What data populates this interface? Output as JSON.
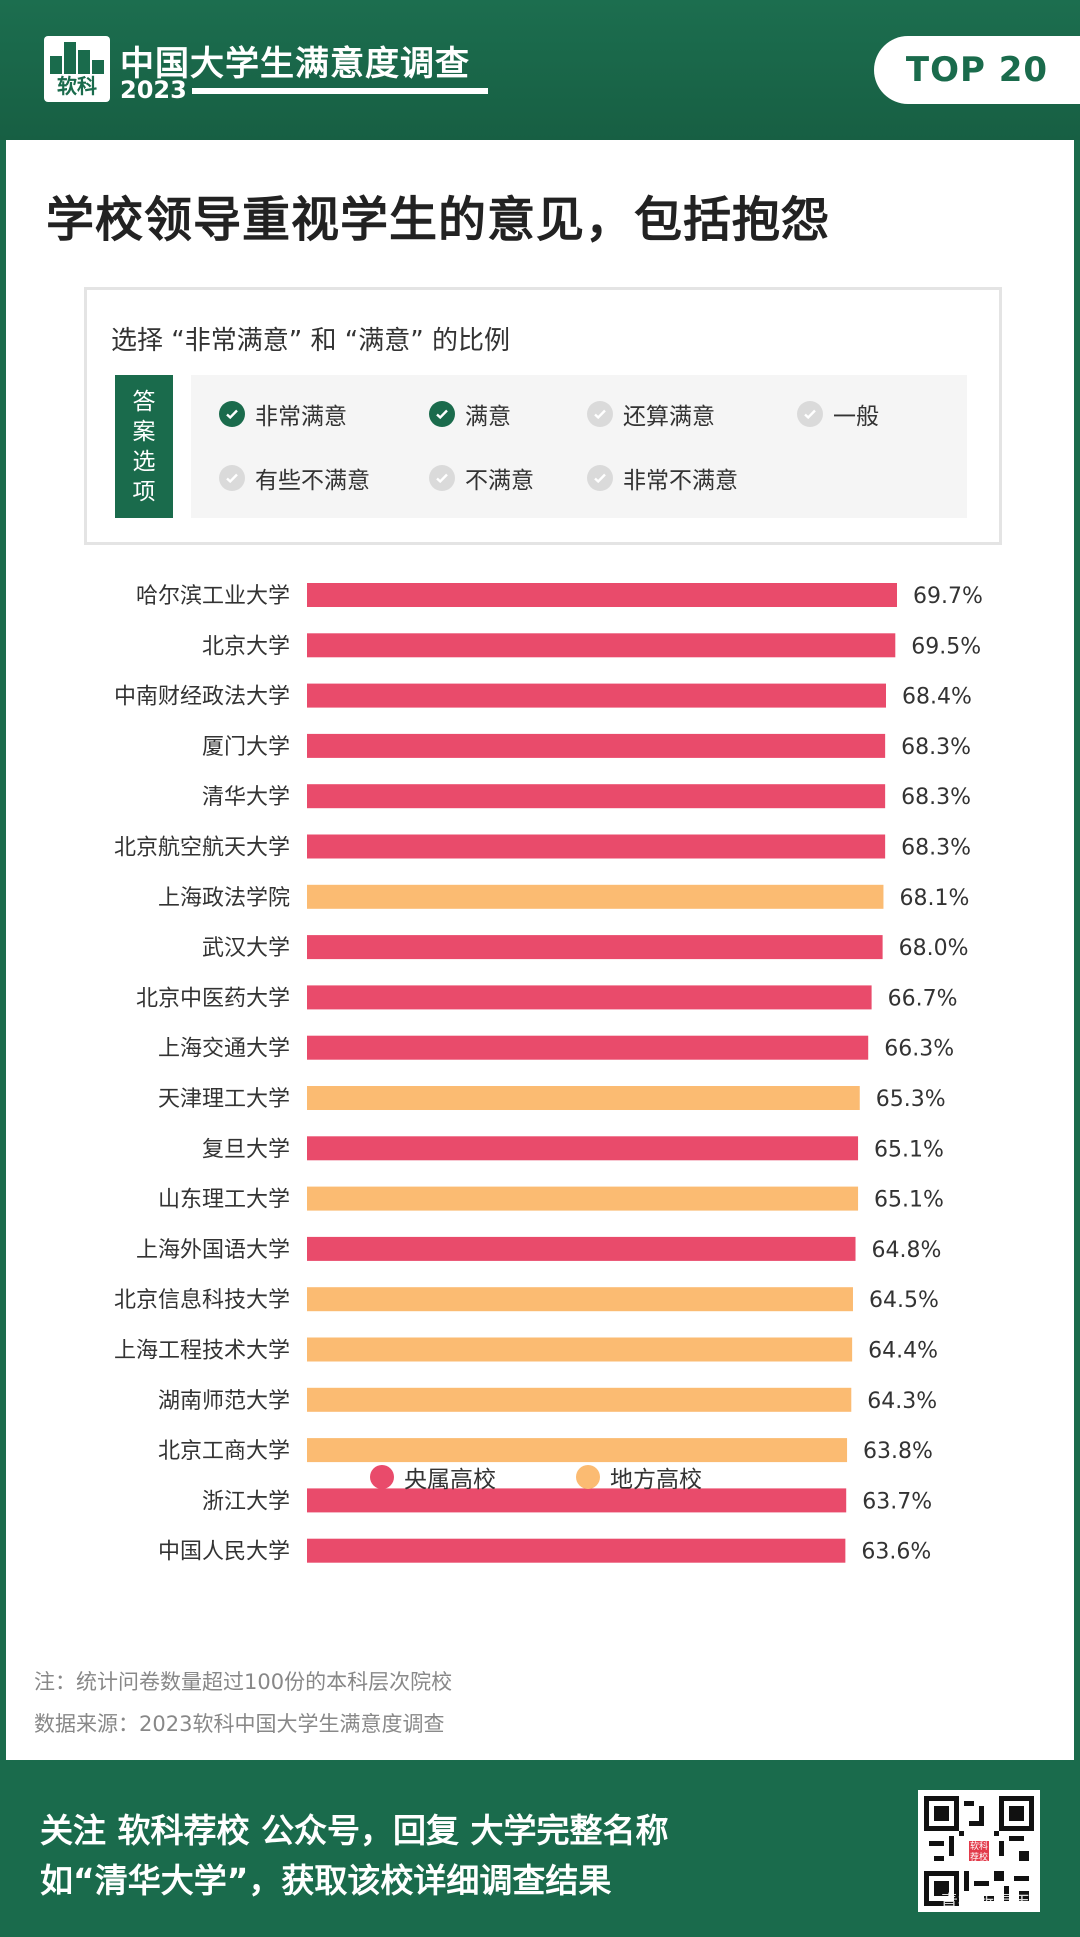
{
  "header": {
    "logo_text": "软科",
    "title": "中国大学生满意度调查",
    "year": "2023",
    "badge": "TOP 20"
  },
  "main_title": "学校领导重视学生的意见，包括抱怨",
  "criteria": {
    "title": "选择 “非常满意” 和 “满意” 的比例",
    "tag": "答案选项",
    "options": [
      {
        "label": "非常满意",
        "selected": true
      },
      {
        "label": "满意",
        "selected": true
      },
      {
        "label": "还算满意",
        "selected": false
      },
      {
        "label": "一般",
        "selected": false
      },
      {
        "label": "有些不满意",
        "selected": false
      },
      {
        "label": "不满意",
        "selected": false
      },
      {
        "label": "非常不满意",
        "selected": false
      }
    ]
  },
  "chart_data": {
    "type": "bar",
    "orientation": "horizontal",
    "unit": "%",
    "categories": [
      "哈尔滨工业大学",
      "北京大学",
      "中南财经政法大学",
      "厦门大学",
      "清华大学",
      "北京航空航天大学",
      "上海政法学院",
      "武汉大学",
      "北京中医药大学",
      "上海交通大学",
      "天津理工大学",
      "复旦大学",
      "山东理工大学",
      "上海外国语大学",
      "北京信息科技大学",
      "上海工程技术大学",
      "湖南师范大学",
      "北京工商大学",
      "浙江大学",
      "中国人民大学"
    ],
    "values": [
      69.7,
      69.5,
      68.4,
      68.3,
      68.3,
      68.3,
      68.1,
      68.0,
      66.7,
      66.3,
      65.3,
      65.1,
      65.1,
      64.8,
      64.5,
      64.4,
      64.3,
      63.8,
      63.7,
      63.6
    ],
    "value_labels": [
      "69.7%",
      "69.5%",
      "68.4%",
      "68.3%",
      "68.3%",
      "68.3%",
      "68.1%",
      "68.0%",
      "66.7%",
      "66.3%",
      "65.3%",
      "65.1%",
      "65.1%",
      "64.8%",
      "64.5%",
      "64.4%",
      "64.3%",
      "63.8%",
      "63.7%",
      "63.6%"
    ],
    "groups": [
      "央属高校",
      "央属高校",
      "央属高校",
      "央属高校",
      "央属高校",
      "央属高校",
      "地方高校",
      "央属高校",
      "央属高校",
      "央属高校",
      "地方高校",
      "央属高校",
      "地方高校",
      "央属高校",
      "地方高校",
      "地方高校",
      "地方高校",
      "地方高校",
      "央属高校",
      "央属高校"
    ],
    "series": [
      {
        "name": "央属高校",
        "color": "#e94b6b"
      },
      {
        "name": "地方高校",
        "color": "#fbbb72"
      }
    ],
    "legend_position": "bottom",
    "grid": false
  },
  "notes": {
    "note": "注：统计问卷数量超过100份的本科层次院校",
    "source": "数据来源：2023软科中国大学生满意度调查"
  },
  "footer": {
    "line1": "关注 软科荐校 公众号，回复 大学完整名称",
    "line2": "如“清华大学”，获取该校详细调查结果",
    "qr_mark": "软科荐校",
    "qr_caption": "青报新青年"
  },
  "colors": {
    "brand_green": "#1a6b4c",
    "central": "#e94b6b",
    "local": "#fbbb72"
  }
}
